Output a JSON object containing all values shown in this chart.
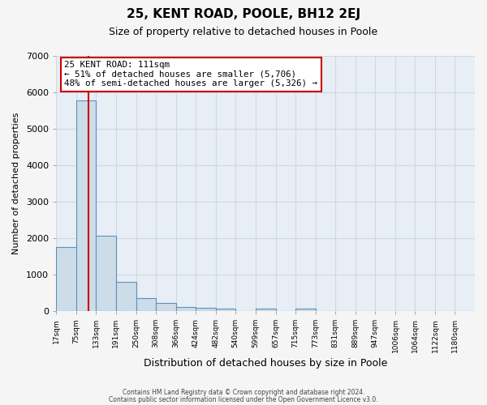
{
  "title": "25, KENT ROAD, POOLE, BH12 2EJ",
  "subtitle": "Size of property relative to detached houses in Poole",
  "xlabel": "Distribution of detached houses by size in Poole",
  "ylabel": "Number of detached properties",
  "bar_labels": [
    "17sqm",
    "75sqm",
    "133sqm",
    "191sqm",
    "250sqm",
    "308sqm",
    "366sqm",
    "424sqm",
    "482sqm",
    "540sqm",
    "599sqm",
    "657sqm",
    "715sqm",
    "773sqm",
    "831sqm",
    "889sqm",
    "947sqm",
    "1006sqm",
    "1064sqm",
    "1122sqm",
    "1180sqm"
  ],
  "bar_values": [
    1760,
    5780,
    2060,
    800,
    360,
    220,
    110,
    95,
    60,
    0,
    55,
    0,
    65,
    0,
    0,
    0,
    0,
    0,
    0,
    0,
    0
  ],
  "bar_color": "#ccdce8",
  "bar_edge_color": "#6090b8",
  "property_line_value": 111,
  "red_line_color": "#cc0000",
  "annotation_title": "25 KENT ROAD: 111sqm",
  "annotation_line1": "← 51% of detached houses are smaller (5,706)",
  "annotation_line2": "48% of semi-detached houses are larger (5,326) →",
  "annotation_box_color": "#ffffff",
  "annotation_box_edge": "#cc0000",
  "ylim": [
    0,
    7000
  ],
  "yticks": [
    0,
    1000,
    2000,
    3000,
    4000,
    5000,
    6000,
    7000
  ],
  "bin_edges": [
    17,
    75,
    133,
    191,
    250,
    308,
    366,
    424,
    482,
    540,
    599,
    657,
    715,
    773,
    831,
    889,
    947,
    1006,
    1064,
    1122,
    1180,
    1238
  ],
  "footer1": "Contains HM Land Registry data © Crown copyright and database right 2024.",
  "footer2": "Contains public sector information licensed under the Open Government Licence v3.0.",
  "bg_color": "#f5f5f5",
  "plot_bg_color": "#e8eef5",
  "grid_color": "#d0d8e0"
}
